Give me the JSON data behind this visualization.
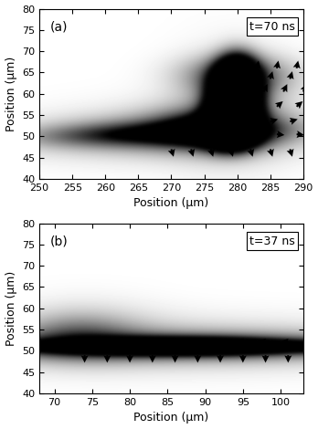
{
  "panel_a": {
    "xlim": [
      250,
      290
    ],
    "ylim": [
      40,
      80
    ],
    "xticks": [
      250,
      255,
      260,
      265,
      270,
      275,
      280,
      285,
      290
    ],
    "yticks": [
      40,
      45,
      50,
      55,
      60,
      65,
      70,
      75,
      80
    ],
    "label": "(a)",
    "time_label": "t=70 ns",
    "xlabel": "Position (μm)",
    "ylabel": "Position (μm)"
  },
  "panel_b": {
    "xlim": [
      68,
      103
    ],
    "ylim": [
      40,
      80
    ],
    "xticks": [
      70,
      75,
      80,
      85,
      90,
      95,
      100
    ],
    "yticks": [
      40,
      45,
      50,
      55,
      60,
      65,
      70,
      75,
      80
    ],
    "label": "(b)",
    "time_label": "t=37 ns",
    "xlabel": "Position (μm)",
    "ylabel": "Position (μm)"
  },
  "background_color": "#ffffff"
}
